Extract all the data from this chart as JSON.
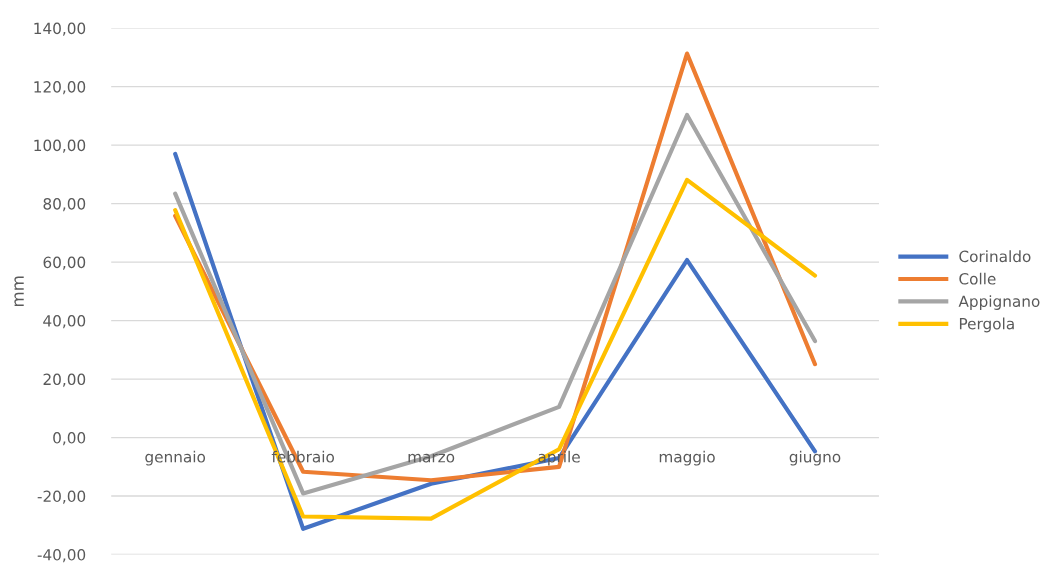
{
  "chart_data": {
    "type": "line",
    "ylabel": "mm",
    "categories": [
      "gennaio",
      "febbraio",
      "marzo",
      "aprile",
      "maggio",
      "giugno"
    ],
    "series": [
      {
        "name": "Corinaldo",
        "color": "#4472c4",
        "values": [
          97.0,
          -31.2,
          -15.8,
          -7.0,
          60.7,
          -4.7
        ]
      },
      {
        "name": "Colle",
        "color": "#ed7d31",
        "values": [
          75.8,
          -11.7,
          -14.6,
          -10.0,
          131.3,
          25.1
        ]
      },
      {
        "name": "Appignano",
        "color": "#a5a5a5",
        "values": [
          83.4,
          -19.1,
          -6.4,
          10.5,
          110.3,
          33.0
        ]
      },
      {
        "name": "Pergola",
        "color": "#ffc000",
        "values": [
          77.8,
          -27.0,
          -27.7,
          -4.0,
          88.1,
          55.4
        ]
      }
    ],
    "ylim": [
      -40,
      140
    ],
    "yticks": [
      {
        "value": -40,
        "label": "-40,00"
      },
      {
        "value": -20,
        "label": "-20,00"
      },
      {
        "value": 0,
        "label": "0,00"
      },
      {
        "value": 20,
        "label": "20,00"
      },
      {
        "value": 40,
        "label": "40,00"
      },
      {
        "value": 60,
        "label": "60,00"
      },
      {
        "value": 80,
        "label": "80,00"
      },
      {
        "value": 100,
        "label": "100,00"
      },
      {
        "value": 120,
        "label": "120,00"
      },
      {
        "value": 140,
        "label": "140,00"
      }
    ],
    "grid": "y",
    "legend": "right",
    "marker": "none",
    "line_style": "solid"
  }
}
